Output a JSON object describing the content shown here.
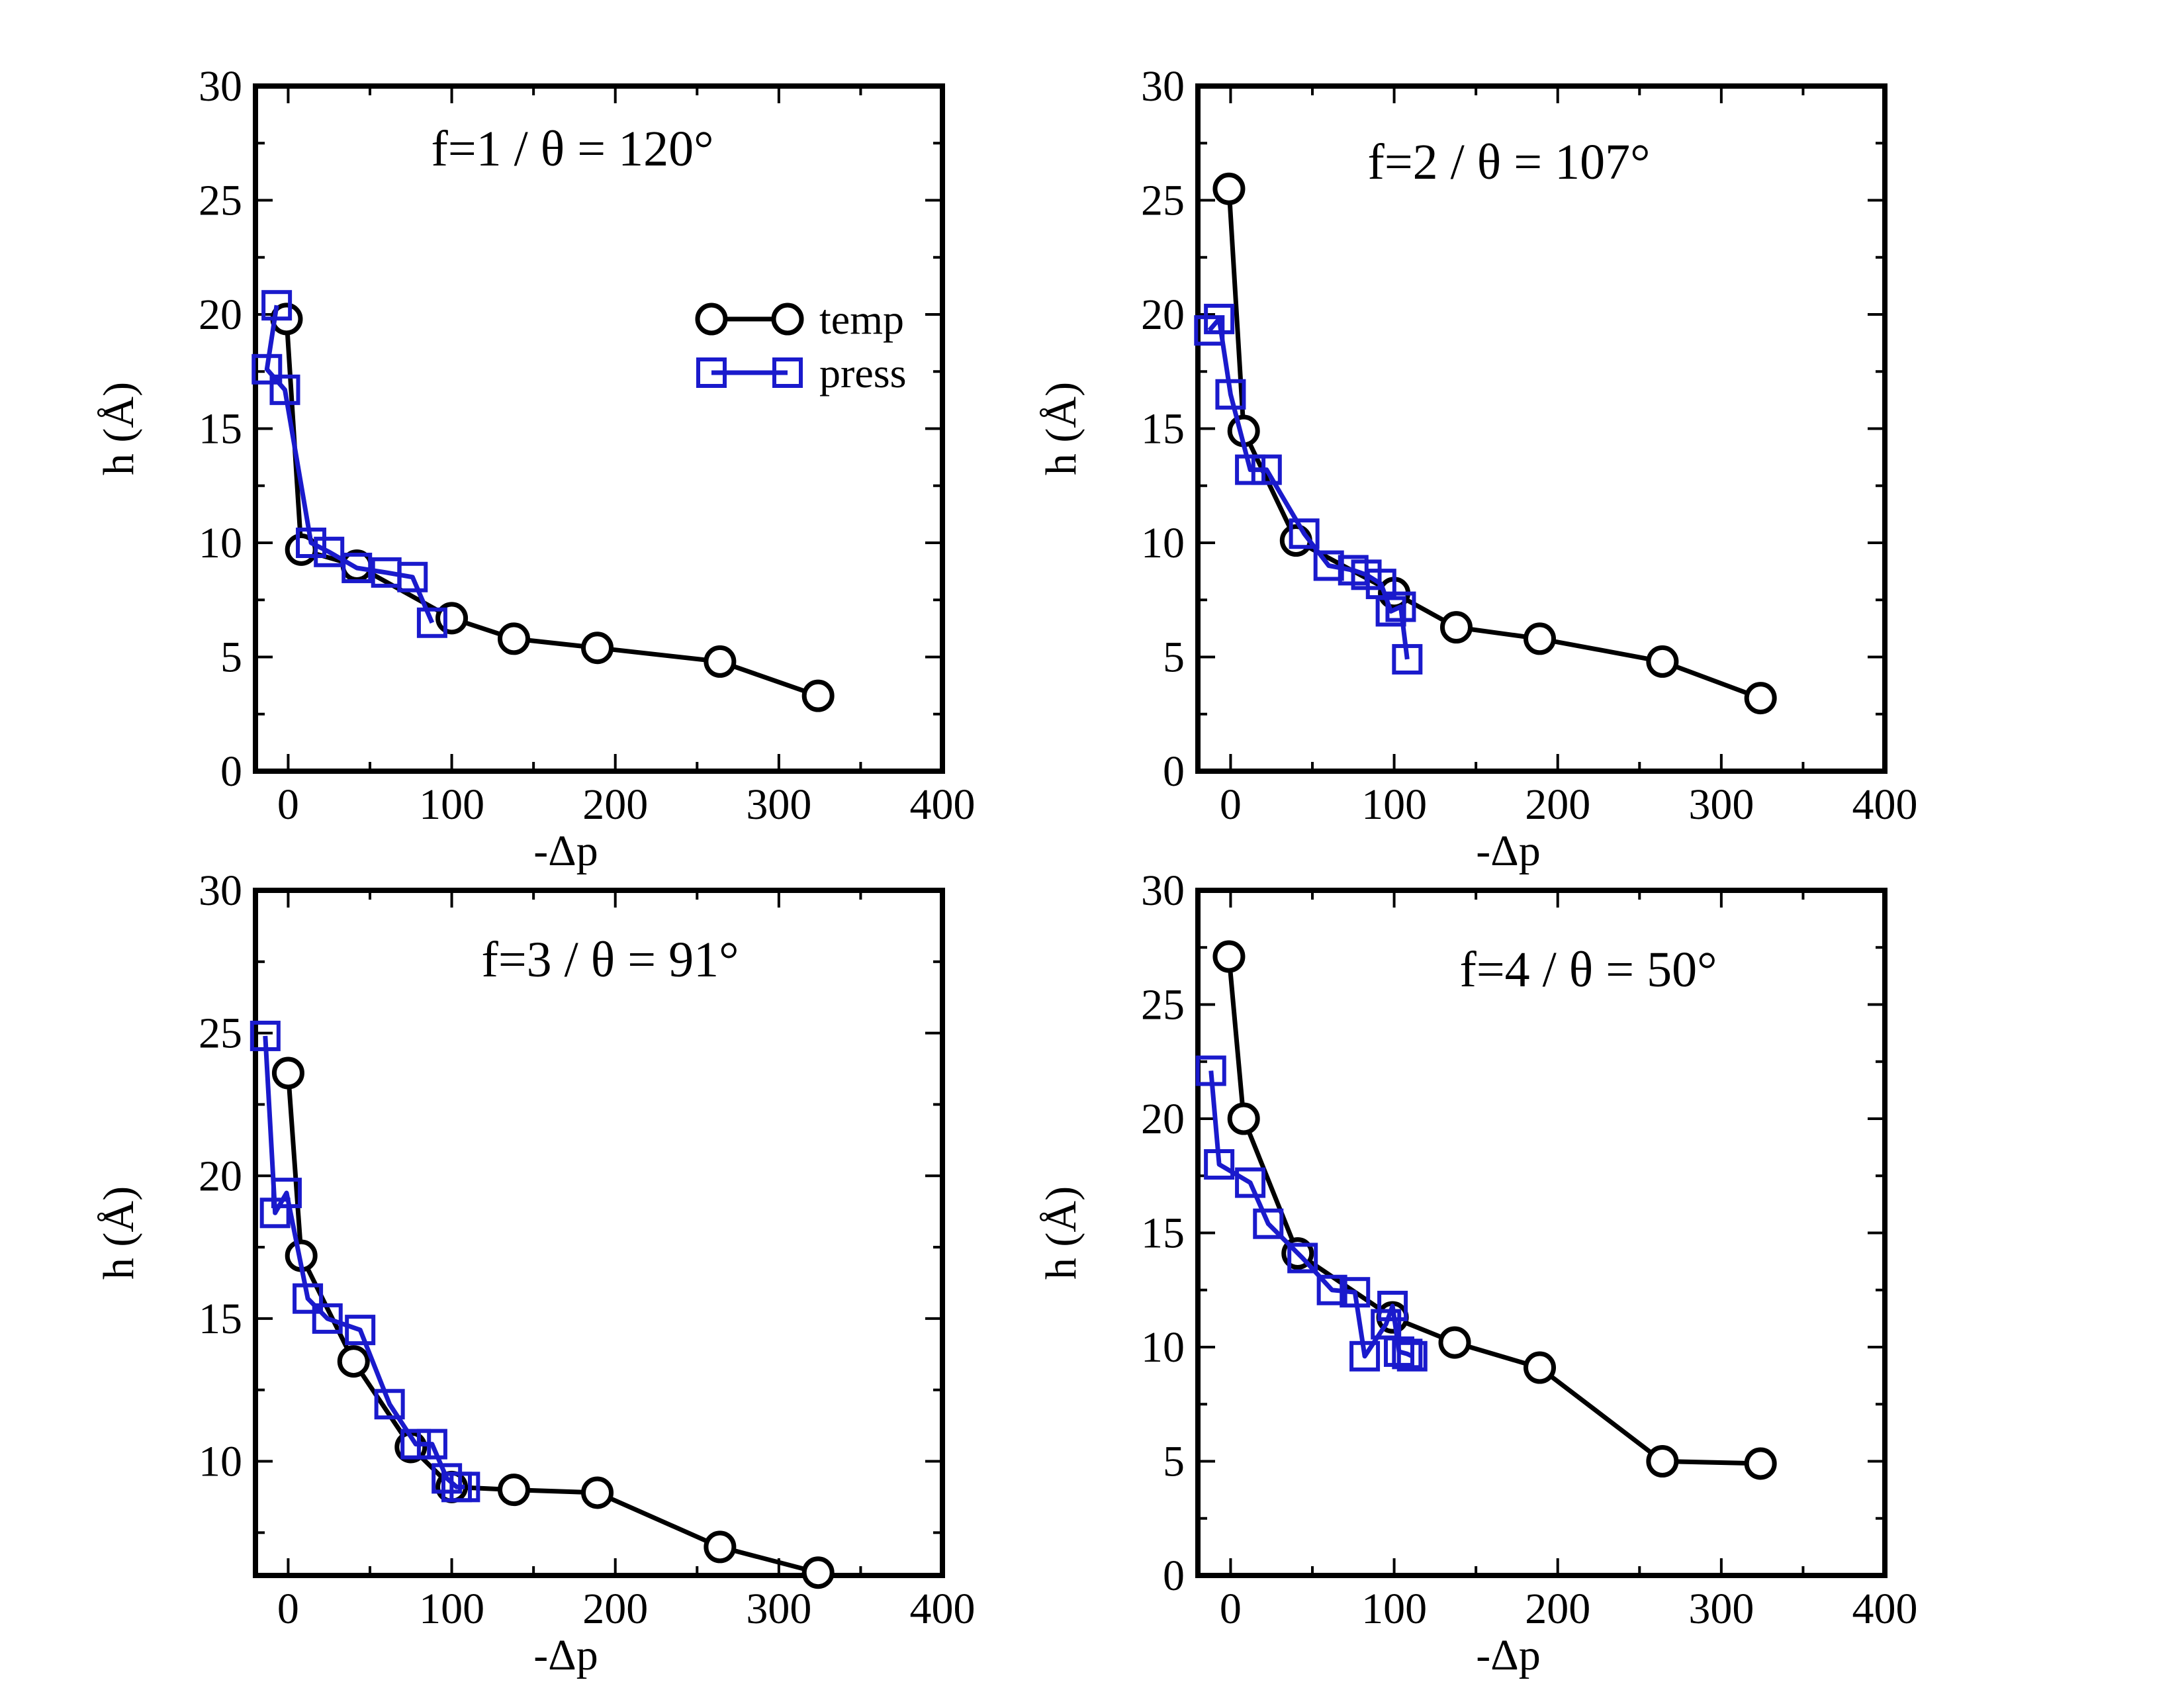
{
  "colors": {
    "temp": "#000000",
    "press": "#1a1acc",
    "frame": "#000000",
    "background": "#ffffff"
  },
  "legend": {
    "temp_label": "temp",
    "press_label": "press"
  },
  "chart_data": [
    {
      "type": "line",
      "title": "f=1 / θ = 120°",
      "xlabel": "-Δp",
      "ylabel": "h (Å)",
      "xlim": [
        -20,
        400
      ],
      "ylim": [
        0,
        30
      ],
      "xticks": [
        "0",
        "100",
        "200",
        "300",
        "400"
      ],
      "yticks": [
        "0",
        "5",
        "10",
        "15",
        "20",
        "25",
        "30"
      ],
      "legend_position": "top-right",
      "series": [
        {
          "name": "temp",
          "marker": "circle",
          "x": [
            -1,
            8,
            42,
            100,
            138,
            189,
            264,
            324
          ],
          "y": [
            19.8,
            9.7,
            9.0,
            6.7,
            5.8,
            5.4,
            4.8,
            3.3
          ]
        },
        {
          "name": "press",
          "marker": "square",
          "x": [
            -7,
            -13,
            -2,
            14,
            25,
            42,
            60,
            76,
            88
          ],
          "y": [
            20.4,
            17.6,
            16.7,
            10.0,
            9.6,
            8.9,
            8.7,
            8.5,
            6.5
          ]
        }
      ]
    },
    {
      "type": "line",
      "title": "f=2 / θ = 107°",
      "xlabel": "-Δp",
      "ylabel": "h (Å)",
      "xlim": [
        -20,
        400
      ],
      "ylim": [
        0,
        30
      ],
      "xticks": [
        "0",
        "100",
        "200",
        "300",
        "400"
      ],
      "yticks": [
        "0",
        "5",
        "10",
        "15",
        "20",
        "25",
        "30"
      ],
      "series": [
        {
          "name": "temp",
          "marker": "circle",
          "x": [
            -1,
            8,
            40,
            100,
            138,
            189,
            264,
            324
          ],
          "y": [
            25.5,
            14.9,
            10.1,
            7.8,
            6.3,
            5.8,
            4.8,
            3.2
          ]
        },
        {
          "name": "press",
          "marker": "square",
          "x": [
            -13,
            -7,
            0,
            12,
            22,
            45,
            60,
            75,
            83,
            92,
            98,
            104,
            108
          ],
          "y": [
            19.3,
            19.8,
            16.5,
            13.2,
            13.2,
            10.4,
            9.0,
            8.8,
            8.6,
            8.2,
            7.0,
            7.2,
            4.9
          ]
        }
      ]
    },
    {
      "type": "line",
      "title": "f=3 / θ = 91°",
      "xlabel": "-Δp",
      "ylabel": "h (Å)",
      "xlim": [
        -20,
        400
      ],
      "ylim": [
        6,
        30
      ],
      "xticks": [
        "0",
        "100",
        "200",
        "300",
        "400"
      ],
      "yticks": [
        "10",
        "15",
        "20",
        "25",
        "30"
      ],
      "series": [
        {
          "name": "temp",
          "marker": "circle",
          "x": [
            0,
            8,
            40,
            75,
            100,
            138,
            189,
            264,
            324
          ],
          "y": [
            23.6,
            17.2,
            13.5,
            10.5,
            9.1,
            9.0,
            8.9,
            7.0,
            6.1
          ]
        },
        {
          "name": "press",
          "marker": "square",
          "x": [
            -14,
            -8,
            -1,
            12,
            24,
            44,
            62,
            78,
            88,
            97,
            103,
            108
          ],
          "y": [
            24.9,
            18.7,
            19.4,
            15.7,
            15.0,
            14.6,
            12.0,
            10.6,
            10.6,
            9.4,
            9.1,
            9.1
          ]
        }
      ]
    },
    {
      "type": "line",
      "title": "f=4 / θ = 50°",
      "xlabel": "-Δp",
      "ylabel": "h (Å)",
      "xlim": [
        -20,
        400
      ],
      "ylim": [
        0,
        30
      ],
      "xticks": [
        "0",
        "100",
        "200",
        "300",
        "400"
      ],
      "yticks": [
        "0",
        "5",
        "10",
        "15",
        "20",
        "25",
        "30"
      ],
      "series": [
        {
          "name": "temp",
          "marker": "circle",
          "x": [
            -1,
            8,
            41,
            99,
            137,
            189,
            264,
            324
          ],
          "y": [
            27.1,
            20.0,
            14.1,
            11.3,
            10.2,
            9.1,
            5.0,
            4.9
          ]
        },
        {
          "name": "press",
          "marker": "square",
          "x": [
            -12,
            -7,
            12,
            23,
            44,
            62,
            76,
            82,
            95,
            99,
            103,
            108,
            111
          ],
          "y": [
            22.1,
            18.0,
            17.2,
            15.4,
            13.9,
            12.5,
            12.4,
            9.6,
            11.0,
            11.8,
            9.8,
            9.7,
            9.6
          ]
        }
      ]
    }
  ]
}
